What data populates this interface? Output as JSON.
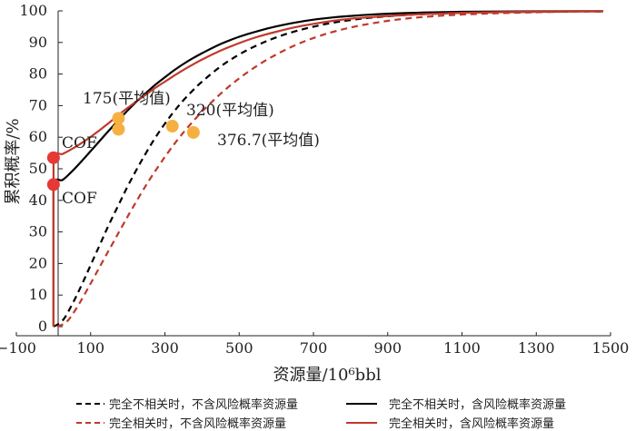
{
  "chart_data": {
    "type": "line",
    "title": "",
    "xlabel": "资源量/10⁶bbl",
    "ylabel": "累积概率/%",
    "xlim": [
      -100,
      1500
    ],
    "ylim": [
      0,
      100
    ],
    "x_ticks": [
      -100,
      100,
      300,
      500,
      700,
      900,
      1100,
      1300,
      1500
    ],
    "x_tick_labels": [
      "−100",
      "100",
      "300",
      "500",
      "700",
      "900",
      "1100",
      "1300",
      "1500"
    ],
    "y_ticks": [
      0,
      10,
      20,
      30,
      40,
      50,
      60,
      70,
      80,
      90,
      100
    ],
    "y_tick_labels": [
      "0",
      "10",
      "20",
      "30",
      "40",
      "50",
      "60",
      "70",
      "80",
      "90",
      "100"
    ],
    "grid": false,
    "legend_position": "bottom",
    "series": [
      {
        "name": "完全不相关时，不含风险概率资源量",
        "color": "#000000",
        "dash": true,
        "x": [
          0,
          25,
          50,
          75,
          100,
          125,
          150,
          175,
          200,
          225,
          250,
          275,
          300,
          325,
          350,
          375,
          400,
          450,
          500,
          550,
          600,
          650,
          700,
          750,
          800,
          850,
          900,
          950,
          1000,
          1050,
          1100,
          1200,
          1300,
          1400,
          1480
        ],
        "y": [
          0,
          2,
          7,
          13,
          19.5,
          26,
          32.5,
          38.5,
          44.5,
          50,
          55.2,
          60,
          64.3,
          68.2,
          71.7,
          74.8,
          77.6,
          82.4,
          86.2,
          89.2,
          91.6,
          93.5,
          95,
          96.2,
          97.1,
          97.8,
          98.3,
          98.7,
          99,
          99.2,
          99.4,
          99.6,
          99.7,
          99.8,
          99.8
        ]
      },
      {
        "name": "完全不相关时，含风险概率资源量",
        "color": "#000000",
        "dash": false,
        "x": [
          0,
          0,
          0,
          25,
          50,
          75,
          100,
          125,
          150,
          175,
          200,
          225,
          250,
          275,
          300,
          325,
          350,
          375,
          400,
          450,
          500,
          550,
          600,
          650,
          700,
          750,
          800,
          850,
          900,
          950,
          1000,
          1050,
          1100,
          1200,
          1300,
          1400,
          1480
        ],
        "y": [
          0,
          30,
          45,
          46.5,
          49.2,
          52.3,
          55.6,
          58.9,
          62.2,
          65.4,
          68.5,
          71.4,
          74.1,
          76.7,
          79,
          81.2,
          83.2,
          85,
          86.6,
          89.5,
          91.8,
          93.6,
          95.1,
          96.3,
          97.2,
          97.9,
          98.4,
          98.8,
          99.1,
          99.3,
          99.5,
          99.6,
          99.7,
          99.8,
          99.85,
          99.9,
          99.9
        ]
      },
      {
        "name": "完全相关时，不含风险概率资源量",
        "color": "#c0392b",
        "dash": true,
        "x": [
          10,
          35,
          60,
          85,
          110,
          135,
          160,
          185,
          210,
          235,
          260,
          285,
          310,
          335,
          360,
          385,
          410,
          460,
          510,
          560,
          610,
          660,
          710,
          760,
          810,
          860,
          910,
          960,
          1010,
          1060,
          1110,
          1210,
          1310,
          1410,
          1480
        ],
        "y": [
          0,
          1.5,
          5.5,
          10.5,
          15.8,
          21.2,
          26.5,
          31.8,
          37,
          42,
          46.8,
          51.2,
          55.4,
          59.3,
          62.9,
          66.2,
          69.3,
          74.8,
          79.5,
          83.5,
          86.8,
          89.6,
          91.8,
          93.6,
          95,
          96.1,
          97,
          97.7,
          98.2,
          98.6,
          98.9,
          99.3,
          99.6,
          99.8,
          99.8
        ]
      },
      {
        "name": "完全相关时，含风险概率资源量",
        "color": "#c0392b",
        "dash": false,
        "x": [
          0,
          0,
          0,
          25,
          50,
          75,
          100,
          125,
          150,
          175,
          200,
          225,
          250,
          275,
          300,
          325,
          350,
          375,
          400,
          450,
          500,
          550,
          600,
          650,
          700,
          750,
          800,
          850,
          900,
          950,
          1000,
          1050,
          1100,
          1200,
          1300,
          1400,
          1480
        ],
        "y": [
          0,
          40,
          53.5,
          54.7,
          56.3,
          58.1,
          60.1,
          62.3,
          64.6,
          67,
          69.3,
          71.5,
          73.6,
          75.7,
          77.6,
          79.5,
          81.3,
          83,
          84.6,
          87.4,
          89.8,
          91.8,
          93.4,
          94.8,
          95.9,
          96.8,
          97.5,
          98,
          98.4,
          98.7,
          99,
          99.2,
          99.4,
          99.6,
          99.75,
          99.85,
          99.9
        ]
      }
    ],
    "markers": [
      {
        "name": "COF",
        "x": 0,
        "y": 53.5,
        "color": "#e53935"
      },
      {
        "name": "COF",
        "x": 0,
        "y": 45,
        "color": "#e53935"
      },
      {
        "name": "175(平均值)",
        "x": 175,
        "y": 66,
        "color": "#f5b041"
      },
      {
        "name": "",
        "x": 175,
        "y": 62.5,
        "color": "#f5b041"
      },
      {
        "name": "320(平均值)",
        "x": 320,
        "y": 63.5,
        "color": "#f5b041"
      },
      {
        "name": "376.7(平均值)",
        "x": 376.7,
        "y": 61.5,
        "color": "#f5b041"
      }
    ],
    "annotations": {
      "cof_upper": "COF",
      "cof_lower": "COF",
      "mean_175": "175(平均值)",
      "mean_320": "320(平均值)",
      "mean_3767": "376.7(平均值)"
    }
  }
}
